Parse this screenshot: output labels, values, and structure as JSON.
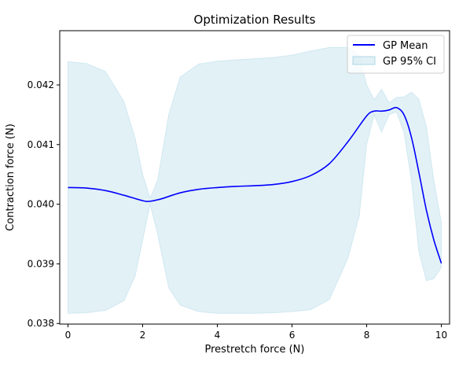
{
  "chart_data": {
    "type": "line",
    "title": "Optimization Results",
    "xlabel": "Prestretch force (N)",
    "ylabel": "Contraction force (N)",
    "xlim": [
      -0.22,
      10.22
    ],
    "ylim": [
      0.03799,
      0.04291
    ],
    "x_ticks": [
      0,
      2,
      4,
      6,
      8,
      10
    ],
    "x_tick_labels": [
      "0",
      "2",
      "4",
      "6",
      "8",
      "10"
    ],
    "y_ticks": [
      0.038,
      0.039,
      0.04,
      0.041,
      0.042
    ],
    "y_tick_labels": [
      "0.038",
      "0.039",
      "0.040",
      "0.041",
      "0.042"
    ],
    "legend_position": "top-right",
    "series": [
      {
        "name": "GP Mean",
        "kind": "line",
        "color": "#0000ff",
        "x": [
          0,
          0.5,
          1.0,
          1.5,
          2.0,
          2.2,
          2.5,
          3.0,
          3.5,
          4.0,
          4.5,
          5.0,
          5.5,
          6.0,
          6.5,
          7.0,
          7.5,
          8.0,
          8.2,
          8.4,
          8.6,
          8.8,
          9.0,
          9.2,
          9.4,
          9.6,
          9.8,
          10.0
        ],
        "y": [
          0.04028,
          0.04027,
          0.04023,
          0.04015,
          0.04006,
          0.04005,
          0.04009,
          0.04019,
          0.04025,
          0.04028,
          0.0403,
          0.04031,
          0.04033,
          0.04038,
          0.04048,
          0.04068,
          0.04105,
          0.04148,
          0.04156,
          0.04156,
          0.04158,
          0.04162,
          0.0415,
          0.04112,
          0.04053,
          0.0399,
          0.0394,
          0.03901
        ]
      },
      {
        "name": "GP 95% CI",
        "kind": "band",
        "color": "#add8e6",
        "x": [
          0,
          0.5,
          1.0,
          1.5,
          1.8,
          2.0,
          2.2,
          2.4,
          2.7,
          3.0,
          3.5,
          4.0,
          4.5,
          5.0,
          5.5,
          6.0,
          6.5,
          7.0,
          7.5,
          7.8,
          8.0,
          8.2,
          8.4,
          8.6,
          8.8,
          9.0,
          9.2,
          9.4,
          9.6,
          9.8,
          10.0
        ],
        "upper": [
          0.04239,
          0.04236,
          0.04223,
          0.04172,
          0.0411,
          0.0405,
          0.0401,
          0.0404,
          0.0415,
          0.04213,
          0.04235,
          0.0424,
          0.04242,
          0.04244,
          0.04246,
          0.0425,
          0.04257,
          0.04263,
          0.04263,
          0.0425,
          0.042,
          0.04175,
          0.04193,
          0.0417,
          0.04179,
          0.0418,
          0.04188,
          0.04176,
          0.0413,
          0.0404,
          0.0397
        ],
        "lower": [
          0.03817,
          0.03818,
          0.03822,
          0.03838,
          0.0388,
          0.0394,
          0.04,
          0.0395,
          0.0386,
          0.03831,
          0.0382,
          0.03817,
          0.03817,
          0.03817,
          0.03818,
          0.0382,
          0.03823,
          0.0384,
          0.0391,
          0.0398,
          0.041,
          0.0415,
          0.04121,
          0.0415,
          0.04155,
          0.0412,
          0.0404,
          0.0392,
          0.03872,
          0.03875,
          0.03894
        ]
      }
    ]
  }
}
